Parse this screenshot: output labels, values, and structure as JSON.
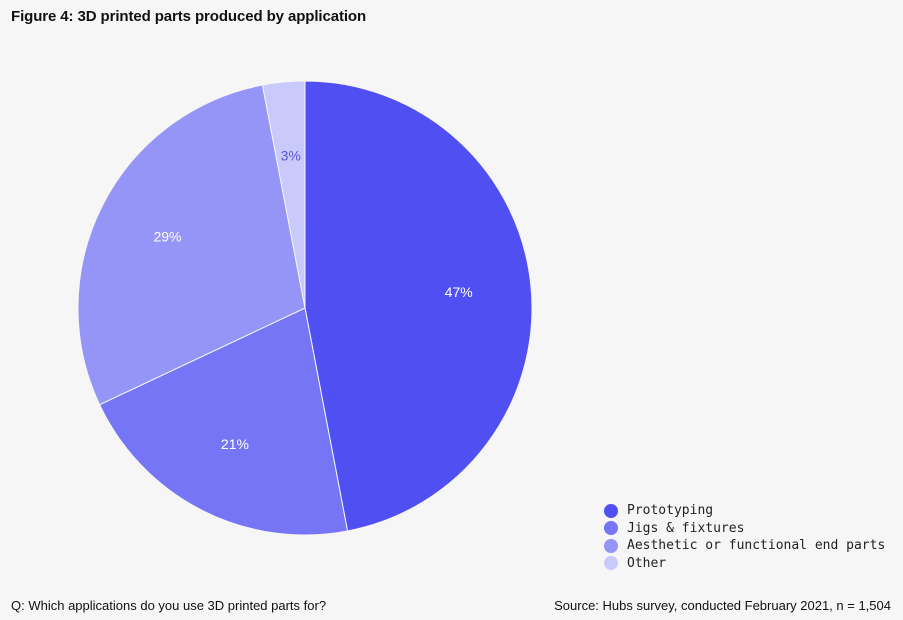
{
  "chart_data": {
    "type": "pie",
    "title": "Figure 4: 3D printed parts produced by application",
    "categories": [
      "Prototyping",
      "Jigs & fixtures",
      "Aesthetic or functional end parts",
      "Other"
    ],
    "values": [
      47,
      21,
      29,
      3
    ],
    "labels": [
      "47%",
      "21%",
      "29%",
      "3%"
    ],
    "colors": [
      "#5050f2",
      "#7575f5",
      "#9595f7",
      "#c9c9fb"
    ],
    "label_colors": [
      "#ffffff",
      "#ffffff",
      "#ffffff",
      "#5a5ad8"
    ],
    "legend_position": "bottom-right"
  },
  "footer": {
    "question": "Q: Which applications do you use 3D printed parts for?",
    "source": "Source: Hubs survey, conducted February 2021, n = 1,504"
  }
}
